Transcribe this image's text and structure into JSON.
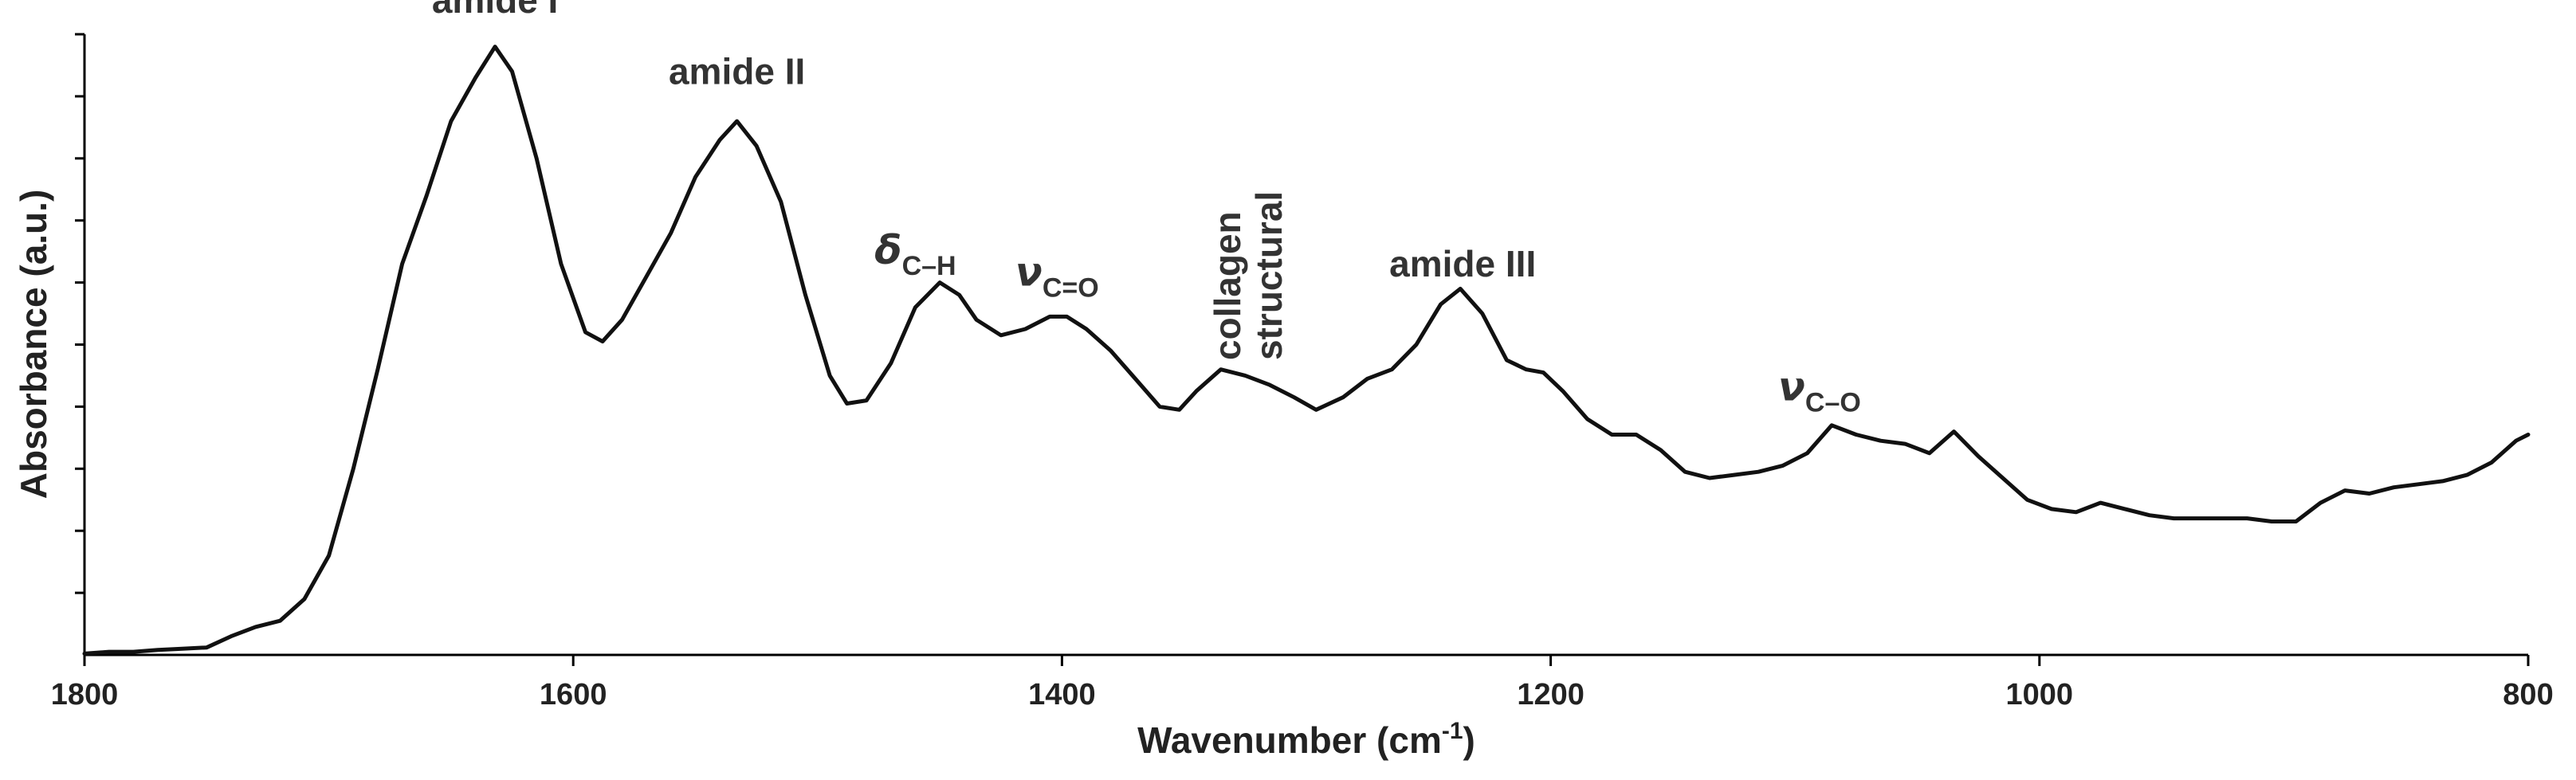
{
  "chart_data": {
    "type": "line",
    "xlabel": "Wavenumber (cm",
    "xlabel_sup": "-1",
    "xlabel_end": ")",
    "ylabel": "Absorbance (a.u.)",
    "xlim": [
      1800,
      800
    ],
    "ylim": [
      0,
      10
    ],
    "x_reversed": true,
    "x_ticks": [
      1800,
      1600,
      1400,
      1200,
      1000,
      800
    ],
    "y_minor_ticks": [
      1,
      2,
      3,
      4,
      5,
      6,
      7,
      8,
      9,
      10
    ],
    "y_tick_labels_shown": false,
    "grid": false,
    "series": [
      {
        "color": "#111111",
        "x": [
          1800,
          1790,
          1780,
          1770,
          1760,
          1750,
          1740,
          1730,
          1720,
          1710,
          1700,
          1690,
          1680,
          1670,
          1660,
          1650,
          1640,
          1632,
          1625,
          1615,
          1605,
          1595,
          1588,
          1580,
          1570,
          1560,
          1550,
          1540,
          1533,
          1525,
          1515,
          1505,
          1495,
          1488,
          1480,
          1470,
          1460,
          1450,
          1442,
          1435,
          1425,
          1415,
          1405,
          1398,
          1390,
          1380,
          1370,
          1360,
          1352,
          1345,
          1335,
          1325,
          1315,
          1305,
          1296,
          1285,
          1275,
          1265,
          1255,
          1245,
          1237,
          1228,
          1218,
          1210,
          1203,
          1195,
          1185,
          1175,
          1165,
          1155,
          1145,
          1135,
          1125,
          1115,
          1105,
          1095,
          1085,
          1075,
          1065,
          1055,
          1045,
          1035,
          1025,
          1015,
          1005,
          995,
          985,
          975,
          965,
          955,
          945,
          935,
          925,
          915,
          905,
          895,
          885,
          875,
          865,
          855,
          845,
          835,
          825,
          815,
          805,
          800
        ],
        "y": [
          0.02,
          0.05,
          0.05,
          0.08,
          0.1,
          0.12,
          0.3,
          0.45,
          0.55,
          0.9,
          1.6,
          3.0,
          4.6,
          6.3,
          7.4,
          8.6,
          9.3,
          9.8,
          9.4,
          8.0,
          6.3,
          5.2,
          5.05,
          5.4,
          6.1,
          6.8,
          7.7,
          8.3,
          8.6,
          8.2,
          7.3,
          5.8,
          4.5,
          4.05,
          4.1,
          4.7,
          5.6,
          6.0,
          5.8,
          5.4,
          5.15,
          5.25,
          5.45,
          5.45,
          5.25,
          4.9,
          4.45,
          4.0,
          3.95,
          4.25,
          4.6,
          4.5,
          4.35,
          4.15,
          3.95,
          4.15,
          4.45,
          4.6,
          5.0,
          5.65,
          5.9,
          5.5,
          4.75,
          4.6,
          4.55,
          4.25,
          3.8,
          3.55,
          3.55,
          3.3,
          2.95,
          2.85,
          2.9,
          2.95,
          3.05,
          3.25,
          3.7,
          3.55,
          3.45,
          3.4,
          3.25,
          3.6,
          3.2,
          2.85,
          2.5,
          2.35,
          2.3,
          2.45,
          2.35,
          2.25,
          2.2,
          2.2,
          2.2,
          2.2,
          2.15,
          2.15,
          2.45,
          2.65,
          2.6,
          2.7,
          2.75,
          2.8,
          2.9,
          3.1,
          3.45,
          3.55
        ]
      }
    ],
    "annotations": [
      {
        "id": "amide-i",
        "text": "amide I",
        "x": 1632,
        "y": 10.35
      },
      {
        "id": "amide-ii",
        "text": "amide II",
        "x": 1533,
        "y": 9.2
      },
      {
        "id": "delta-ch",
        "symbol": "δ",
        "sub": "C–H",
        "x": 1460,
        "y": 6.3
      },
      {
        "id": "nu-co-double",
        "symbol": "ν",
        "sub": "C=O",
        "x": 1402,
        "y": 5.95
      },
      {
        "id": "collagen-structural",
        "lines": [
          "collagen",
          "structural"
        ],
        "x": 1327,
        "y": 4.75,
        "rotated": true
      },
      {
        "id": "amide-iii",
        "text": "amide III",
        "x": 1236,
        "y": 6.1
      },
      {
        "id": "nu-co-single",
        "symbol": "ν",
        "sub": "C–O",
        "x": 1090,
        "y": 4.1
      }
    ]
  }
}
